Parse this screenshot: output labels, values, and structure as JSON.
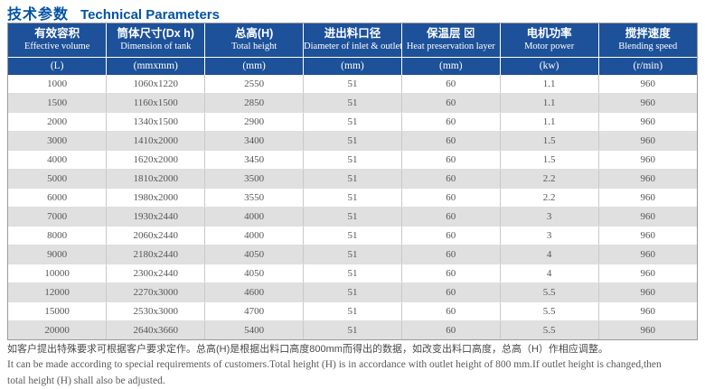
{
  "page": {
    "title_zh": "技术参数",
    "title_en": "Technical Parameters"
  },
  "table": {
    "columns": [
      {
        "zh": "有效容积",
        "en": "Effective volume",
        "unit": "(L)"
      },
      {
        "zh": "筒体尺寸(Dx h)",
        "en": "Dimension of tank",
        "unit": "(mmxmm)"
      },
      {
        "zh": "总高(H)",
        "en": "Total height",
        "unit": "(mm)"
      },
      {
        "zh": "进出料口径",
        "en": "Diameter of inlet & outlet",
        "unit": "(mm)"
      },
      {
        "zh": "保温层 ⊠",
        "en": "Heat preservation layer",
        "unit": "(mm)"
      },
      {
        "zh": "电机功率",
        "en": "Motor power",
        "unit": "(kw)"
      },
      {
        "zh": "搅拌速度",
        "en": "Blending speed",
        "unit": "(r/min)"
      }
    ],
    "rows": [
      [
        "1000",
        "1060x1220",
        "2550",
        "51",
        "60",
        "1.1",
        "960"
      ],
      [
        "1500",
        "1160x1500",
        "2850",
        "51",
        "60",
        "1.1",
        "960"
      ],
      [
        "2000",
        "1340x1500",
        "2900",
        "51",
        "60",
        "1.1",
        "960"
      ],
      [
        "3000",
        "1410x2000",
        "3400",
        "51",
        "60",
        "1.5",
        "960"
      ],
      [
        "4000",
        "1620x2000",
        "3450",
        "51",
        "60",
        "1.5",
        "960"
      ],
      [
        "5000",
        "1810x2000",
        "3500",
        "51",
        "60",
        "2.2",
        "960"
      ],
      [
        "6000",
        "1980x2000",
        "3550",
        "51",
        "60",
        "2.2",
        "960"
      ],
      [
        "7000",
        "1930x2440",
        "4000",
        "51",
        "60",
        "3",
        "960"
      ],
      [
        "8000",
        "2060x2440",
        "4000",
        "51",
        "60",
        "3",
        "960"
      ],
      [
        "9000",
        "2180x2440",
        "4050",
        "51",
        "60",
        "4",
        "960"
      ],
      [
        "10000",
        "2300x2440",
        "4050",
        "51",
        "60",
        "4",
        "960"
      ],
      [
        "12000",
        "2270x3000",
        "4600",
        "51",
        "60",
        "5.5",
        "960"
      ],
      [
        "15000",
        "2530x3000",
        "4700",
        "51",
        "60",
        "5.5",
        "960"
      ],
      [
        "20000",
        "2640x3660",
        "5400",
        "51",
        "60",
        "5.5",
        "960"
      ]
    ]
  },
  "footnote": {
    "zh": "如客户提出特殊要求可根据客户要求定作。总高(H)是根据出料口高度800mm而得出的数据，如改变出料口高度，总高（H）作相应调整。",
    "en_line1": "It can be made according to special requirements of customers.Total height (H) is in accordance with outlet height of 800 mm.If outlet height is changed,then",
    "en_line2": "total height (H) shall also be adjusted."
  },
  "colors": {
    "header_bg": "#1d5199",
    "title_text": "#0253a4",
    "row_alt_bg": "#e0e0e0",
    "cell_text": "#555555",
    "outer_border": "#9b9b9b"
  }
}
